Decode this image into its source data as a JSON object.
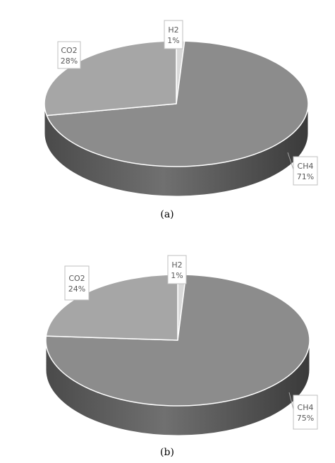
{
  "chart_data": [
    {
      "type": "pie",
      "style": "3d",
      "caption": "(a)",
      "slices": [
        {
          "label": "H2",
          "value": 1,
          "percent_label": "1%",
          "color": "#d9d9d9"
        },
        {
          "label": "CH4",
          "value": 71,
          "percent_label": "71%",
          "color": "#8c8c8c"
        },
        {
          "label": "CO2",
          "value": 28,
          "percent_label": "28%",
          "color": "#a6a6a6"
        }
      ]
    },
    {
      "type": "pie",
      "style": "3d",
      "caption": "(b)",
      "slices": [
        {
          "label": "H2",
          "value": 1,
          "percent_label": "1%",
          "color": "#d9d9d9"
        },
        {
          "label": "CH4",
          "value": 75,
          "percent_label": "75%",
          "color": "#8c8c8c"
        },
        {
          "label": "CO2",
          "value": 24,
          "percent_label": "24%",
          "color": "#a6a6a6"
        }
      ]
    }
  ]
}
